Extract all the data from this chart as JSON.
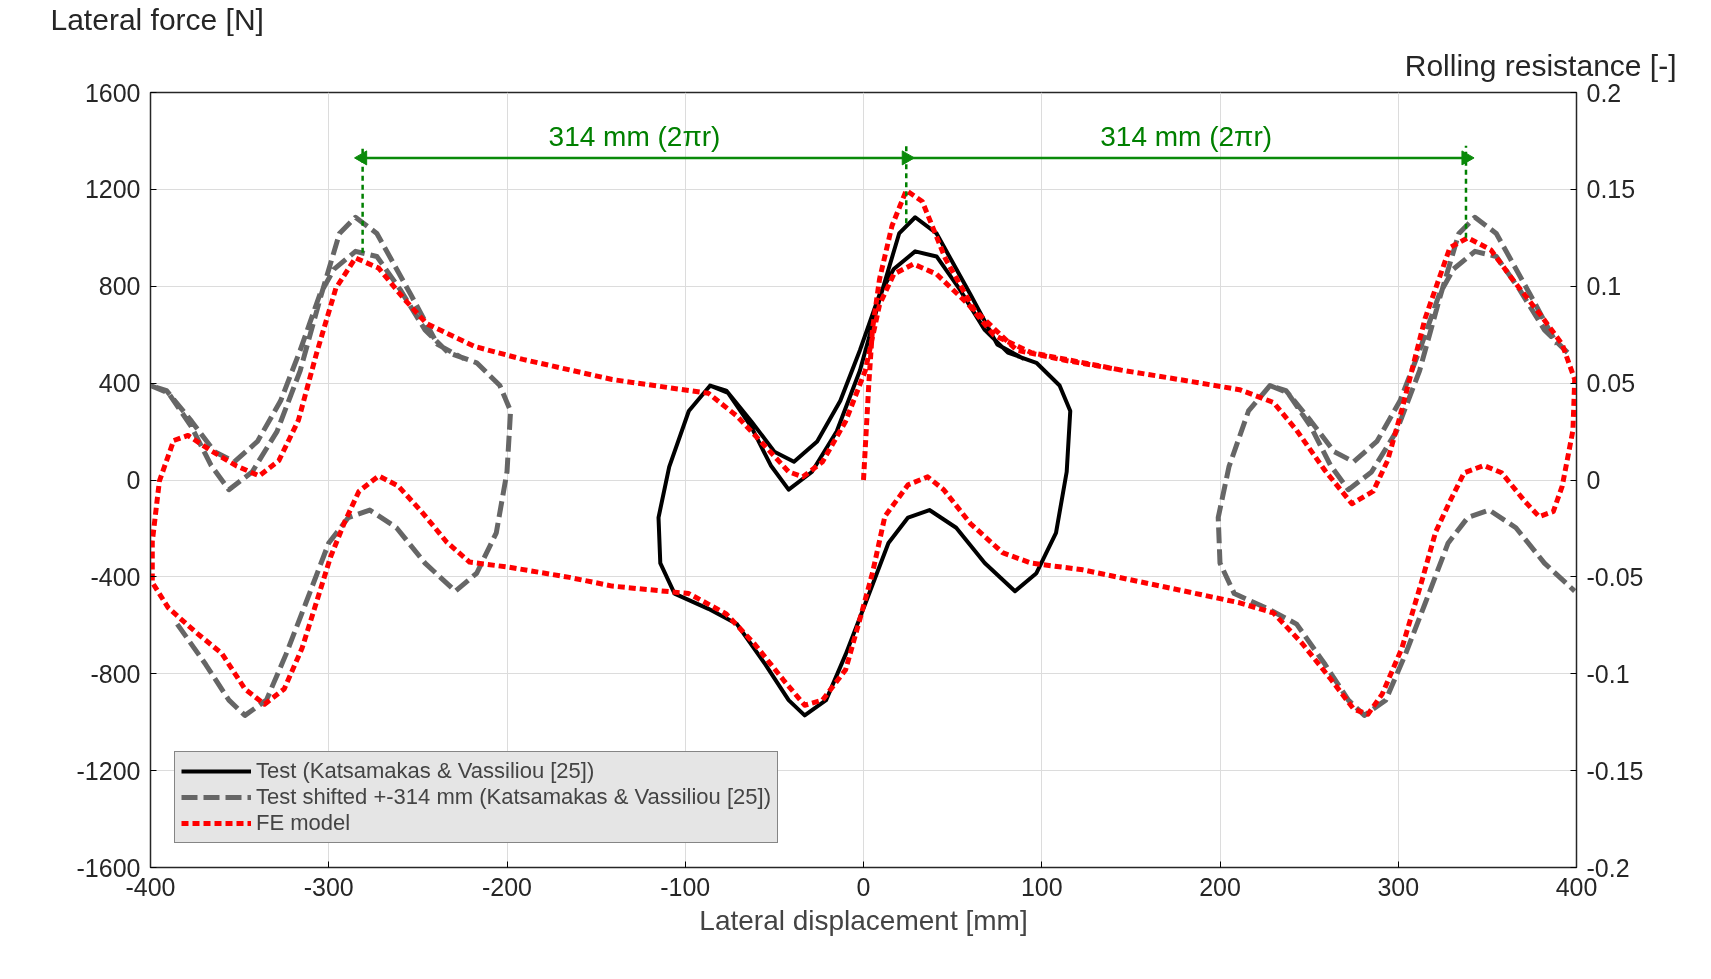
{
  "chart_data": {
    "type": "line",
    "xlabel": "Lateral displacement [mm]",
    "ylabel": "Lateral force [N]",
    "y2label": "Rolling resistance [-]",
    "xlim": [
      -400,
      400
    ],
    "xticks": [
      -400,
      -300,
      -200,
      -100,
      0,
      100,
      200,
      300,
      400
    ],
    "ylim": [
      -1600,
      1600
    ],
    "yticks": [
      -1600,
      -1200,
      -800,
      -400,
      0,
      400,
      800,
      1200,
      1600
    ],
    "y2lim": [
      -0.2,
      0.2
    ],
    "y2ticks": [
      -0.2,
      -0.15,
      -0.1,
      -0.05,
      0,
      0.05,
      0.1,
      0.15,
      0.2
    ],
    "grid": true,
    "legend": "bottom left",
    "annotations": [
      "314 mm (2πr)",
      "314 mm (2πr)"
    ],
    "series": [
      {
        "name": "Test (Katsamakas & Vassiliou [25])",
        "color": "#000000",
        "line_style": "solid",
        "x": [
          -86,
          -98,
          -109,
          -115,
          -114,
          -106,
          -87,
          -71,
          -55,
          -42,
          -33,
          -21,
          -10,
          1,
          14,
          25,
          37,
          52,
          68,
          85,
          97,
          108,
          114,
          116,
          110,
          97,
          81,
          68,
          54,
          41,
          29,
          17,
          9,
          -2,
          -13,
          -26,
          -39,
          -50,
          -63,
          -77,
          -86,
          -76,
          -63,
          -52,
          -42,
          -29,
          -15,
          -2,
          9,
          20,
          29,
          41,
          60,
          75,
          90
        ],
        "values": [
          390,
          285,
          54,
          -155,
          -343,
          -469,
          -532,
          -595,
          -762,
          -909,
          -972,
          -909,
          -720,
          -511,
          -260,
          -155,
          -124,
          -197,
          -343,
          -459,
          -385,
          -218,
          34,
          285,
          390,
          484,
          526,
          620,
          787,
          923,
          944,
          871,
          766,
          536,
          327,
          159,
          75,
          117,
          243,
          369,
          390,
          360,
          220,
          60,
          -40,
          33,
          201,
          452,
          745,
          1018,
          1085,
          1018,
          766,
          560,
          500
        ]
      },
      {
        "name": "Test shifted +-314 mm (Katsamakas & Vassiliou [25])",
        "color": "#666666",
        "line_style": "dashed",
        "x": [
          -400,
          null,
          -385,
          -369,
          -356,
          -347,
          -335,
          -324,
          -313,
          -300,
          -289,
          -277,
          -262,
          -246,
          -229,
          -217,
          -206,
          -200,
          -198,
          -204,
          -217,
          -233,
          -246,
          -260,
          -273,
          -285,
          -297,
          -305,
          -316,
          -327,
          -340,
          -353,
          -364,
          -377,
          -391,
          -400,
          -390,
          -377,
          -366,
          -356,
          -343,
          -329,
          -316,
          -305,
          -294,
          -285,
          -273,
          -254,
          -239,
          -224,
          null,
          228,
          216,
          205,
          199,
          200,
          208,
          227,
          243,
          259,
          272,
          281,
          293,
          304,
          315,
          328,
          339,
          351,
          366,
          382,
          399,
          null,
          395,
          382,
          368,
          355,
          343,
          331,
          323,
          312,
          301,
          288,
          275,
          264,
          251,
          237,
          228,
          238,
          251,
          262,
          272,
          285,
          299,
          312,
          323,
          334,
          343,
          355,
          374,
          389
        ],
        "values": [
          390,
          null,
          -595,
          -762,
          -909,
          -972,
          -909,
          -720,
          -511,
          -260,
          -155,
          -124,
          -197,
          -343,
          -459,
          -385,
          -218,
          34,
          285,
          390,
          484,
          526,
          620,
          787,
          923,
          944,
          871,
          766,
          536,
          327,
          159,
          75,
          117,
          243,
          369,
          390,
          360,
          220,
          60,
          -40,
          33,
          201,
          452,
          745,
          1018,
          1085,
          1018,
          766,
          560,
          500,
          null,
          390,
          285,
          54,
          -155,
          -343,
          -469,
          -532,
          -595,
          -762,
          -909,
          -972,
          -909,
          -720,
          -511,
          -260,
          -155,
          -124,
          -197,
          -343,
          -459,
          null,
          526,
          620,
          787,
          923,
          944,
          871,
          766,
          536,
          327,
          159,
          75,
          117,
          243,
          369,
          390,
          360,
          220,
          60,
          -40,
          33,
          201,
          452,
          745,
          1018,
          1085,
          1018,
          766,
          560
        ]
      },
      {
        "name": "FE model",
        "color": "#ff0000",
        "line_style": "dotted",
        "x": [
          0,
          3,
          5,
          9,
          16,
          24,
          33,
          46,
          62,
          86,
          113,
          146,
          177,
          211,
          230,
          243,
          259,
          274,
          286,
          294,
          302,
          315,
          329,
          339,
          352,
          365,
          380,
          392,
          399,
          398,
          392,
          387,
          379,
          371,
          358,
          348,
          337,
          329,
          321,
          313,
          302,
          291,
          283,
          275,
          262,
          246,
          230,
          211,
          177,
          123,
          94,
          78,
          60,
          45,
          36,
          25,
          12,
          5,
          -2,
          -10,
          -23,
          -33,
          -45,
          -61,
          -77,
          -98,
          -141,
          -165,
          -199,
          -221,
          -234,
          -248,
          -261,
          -272,
          -283,
          -291,
          -299,
          -307,
          -315,
          -325,
          -336,
          -347,
          -360,
          -374,
          -390,
          -399,
          -399,
          -395,
          -387,
          -379,
          -366,
          -352,
          -339,
          -328,
          -317,
          -307,
          -296,
          -285,
          -272,
          -258,
          -245,
          -218,
          -191,
          -141,
          -87,
          -71,
          -55,
          -42,
          -34,
          -23,
          -10,
          1,
          9,
          17,
          28,
          41,
          59,
          73,
          94,
          146
        ],
        "values": [
          0,
          400,
          620,
          830,
          1050,
          1196,
          1150,
          913,
          704,
          536,
          494,
          452,
          415,
          373,
          320,
          205,
          38,
          -98,
          -46,
          80,
          289,
          666,
          960,
          1000,
          950,
          820,
          680,
          560,
          415,
          205,
          -25,
          -130,
          -151,
          -88,
          30,
          60,
          30,
          -88,
          -214,
          -423,
          -695,
          -884,
          -967,
          -946,
          -821,
          -674,
          -549,
          -507,
          -454,
          -371,
          -343,
          -300,
          -180,
          -40,
          13,
          -20,
          -150,
          -385,
          -574,
          -783,
          -909,
          -930,
          -825,
          -678,
          -553,
          -469,
          -438,
          -402,
          -360,
          -339,
          -255,
          -130,
          -25,
          17,
          -46,
          -172,
          -318,
          -507,
          -695,
          -863,
          -926,
          -863,
          -716,
          -632,
          -528,
          -423,
          -255,
          -4,
          163,
          184,
          121,
          59,
          17,
          80,
          247,
          519,
          792,
          917,
          875,
          750,
          645,
          551,
          498,
          415,
          358,
          264,
          138,
          34,
          13,
          75,
          243,
          452,
          724,
          850,
          892,
          850,
          724,
          599,
          526,
          452
        ]
      },
      {
        "color": "#008000",
        "line_style": "dashed",
        "x": [
          -281,
          -281,
          null,
          24,
          24,
          null,
          338,
          338
        ],
        "values": [
          938,
          1380,
          null,
          1060,
          1380,
          null,
          1000,
          1380
        ]
      },
      {
        "color": "#0a8a0a",
        "line_style": "solid",
        "marker": "triangle",
        "x": [
          -281,
          24,
          338
        ],
        "values": [
          1330,
          1330,
          1330
        ]
      }
    ]
  }
}
